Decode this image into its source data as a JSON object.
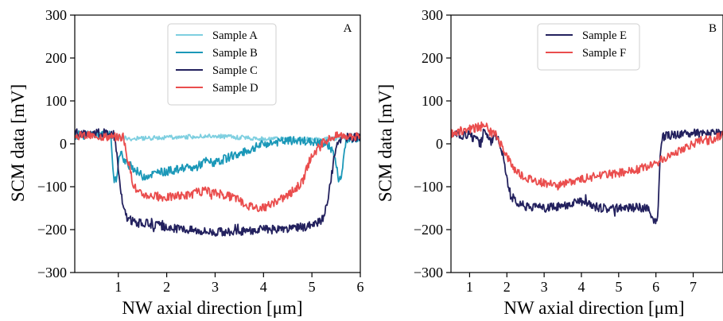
{
  "chart_data": [
    {
      "type": "line",
      "panel_label": "A",
      "xlabel": "NW axial direction [μm]",
      "ylabel": "SCM data [mV]",
      "xlim": [
        0.1,
        6.0
      ],
      "ylim": [
        -300,
        300
      ],
      "xticks": [
        "1",
        "2",
        "3",
        "4",
        "5",
        "6"
      ],
      "yticks": [
        "300",
        "200",
        "100",
        "0",
        "−100",
        "−200",
        "−300"
      ],
      "legend_position": "top-center",
      "series": [
        {
          "name": "Sample A",
          "color": "#7ecfe0",
          "x": [
            0.1,
            0.5,
            0.9,
            1.0,
            1.3,
            2.0,
            3.0,
            4.0,
            5.0,
            5.5,
            5.7,
            6.0
          ],
          "y": [
            18,
            22,
            20,
            15,
            12,
            15,
            18,
            12,
            10,
            12,
            15,
            15
          ]
        },
        {
          "name": "Sample B",
          "color": "#1b98b8",
          "x": [
            0.1,
            0.85,
            0.9,
            0.95,
            1.05,
            1.1,
            1.3,
            1.5,
            1.8,
            2.2,
            2.6,
            2.8,
            3.0,
            3.3,
            3.6,
            4.0,
            4.3,
            4.6,
            5.0,
            5.3,
            5.45,
            5.55,
            5.6,
            5.7,
            6.0
          ],
          "y": [
            20,
            20,
            -80,
            -85,
            -10,
            -40,
            -55,
            -75,
            -68,
            -60,
            -55,
            -40,
            -45,
            -30,
            -20,
            0,
            5,
            8,
            5,
            0,
            -20,
            -80,
            -85,
            10,
            15
          ]
        },
        {
          "name": "Sample C",
          "color": "#23215e",
          "x": [
            0.1,
            0.9,
            0.95,
            1.0,
            1.05,
            1.1,
            1.2,
            1.4,
            1.6,
            2.0,
            2.5,
            3.0,
            3.5,
            4.0,
            4.5,
            5.0,
            5.2,
            5.3,
            5.4,
            5.5,
            5.55,
            5.7,
            6.0
          ],
          "y": [
            25,
            25,
            0,
            -60,
            -110,
            -150,
            -175,
            -185,
            -185,
            -195,
            -200,
            -205,
            -205,
            -200,
            -200,
            -190,
            -180,
            -150,
            -80,
            0,
            10,
            15,
            15
          ]
        },
        {
          "name": "Sample D",
          "color": "#ea4d4d",
          "x": [
            0.1,
            1.1,
            1.2,
            1.3,
            1.4,
            1.6,
            2.0,
            2.4,
            2.8,
            3.0,
            3.4,
            3.7,
            4.0,
            4.2,
            4.5,
            4.8,
            4.95,
            5.05,
            5.2,
            5.4,
            5.6,
            6.0
          ],
          "y": [
            20,
            15,
            -40,
            -90,
            -115,
            -120,
            -125,
            -120,
            -110,
            -115,
            -125,
            -145,
            -150,
            -140,
            -120,
            -90,
            -40,
            -20,
            0,
            15,
            20,
            15
          ]
        }
      ]
    },
    {
      "type": "line",
      "panel_label": "B",
      "xlabel": "NW axial direction [μm]",
      "ylabel": "SCM data [mV]",
      "xlim": [
        0.5,
        7.8
      ],
      "ylim": [
        -300,
        300
      ],
      "xticks": [
        "1",
        "2",
        "3",
        "4",
        "5",
        "6",
        "7"
      ],
      "yticks": [
        "300",
        "200",
        "100",
        "0",
        "−100",
        "−200",
        "−300"
      ],
      "legend_position": "top-center",
      "series": [
        {
          "name": "Sample E",
          "color": "#23215e",
          "x": [
            0.5,
            1.0,
            1.3,
            1.4,
            1.5,
            1.6,
            1.7,
            1.8,
            1.9,
            2.0,
            2.1,
            2.3,
            2.5,
            3.0,
            3.5,
            3.7,
            4.0,
            4.5,
            5.0,
            5.5,
            5.8,
            5.9,
            6.0,
            6.05,
            6.1,
            6.15,
            6.3,
            7.0,
            7.8
          ],
          "y": [
            20,
            20,
            0,
            40,
            10,
            5,
            15,
            5,
            -30,
            -80,
            -120,
            -140,
            -145,
            -150,
            -145,
            -140,
            -135,
            -150,
            -150,
            -148,
            -150,
            -175,
            -185,
            -170,
            -50,
            15,
            20,
            25,
            25
          ]
        },
        {
          "name": "Sample F",
          "color": "#ea4d4d",
          "x": [
            0.5,
            1.0,
            1.3,
            1.4,
            1.5,
            1.7,
            1.8,
            1.9,
            2.0,
            2.2,
            2.5,
            3.0,
            3.5,
            4.0,
            4.5,
            5.0,
            5.5,
            6.0,
            6.5,
            7.0,
            7.5,
            7.8
          ],
          "y": [
            25,
            35,
            40,
            50,
            30,
            20,
            5,
            -10,
            -30,
            -60,
            -80,
            -92,
            -95,
            -82,
            -75,
            -68,
            -60,
            -45,
            -20,
            0,
            10,
            20
          ]
        }
      ]
    }
  ]
}
